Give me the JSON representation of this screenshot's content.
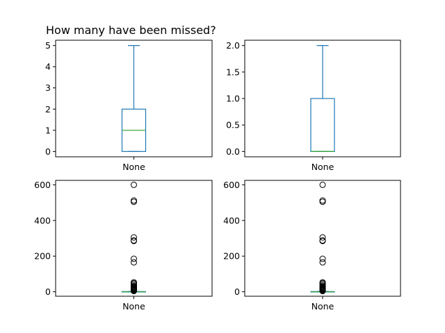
{
  "title": "How many have been missed?",
  "colors": {
    "box": "#1f77b4",
    "median": "#2ca02c",
    "flier": "#000000",
    "axes": "#000000"
  },
  "chart_data": [
    {
      "type": "box",
      "category": "None",
      "ylim": [
        -0.25,
        5.25
      ],
      "yticks": [
        0,
        1,
        2,
        3,
        4,
        5
      ],
      "yticklabels": [
        "0",
        "1",
        "2",
        "3",
        "4",
        "5"
      ],
      "stats": {
        "whislo": 0,
        "q1": 0,
        "med": 1,
        "q3": 2,
        "whishi": 5
      },
      "fliers": []
    },
    {
      "type": "box",
      "category": "None",
      "ylim": [
        -0.1,
        2.1
      ],
      "yticks": [
        0,
        0.5,
        1,
        1.5,
        2
      ],
      "yticklabels": [
        "0.0",
        "0.5",
        "1.0",
        "1.5",
        "2.0"
      ],
      "stats": {
        "whislo": 0,
        "q1": 0,
        "med": 0,
        "q3": 1,
        "whishi": 2
      },
      "fliers": []
    },
    {
      "type": "box",
      "category": "None",
      "ylim": [
        -25,
        625
      ],
      "yticks": [
        0,
        200,
        400,
        600
      ],
      "yticklabels": [
        "0",
        "200",
        "400",
        "600"
      ],
      "stats": {
        "whislo": 0,
        "q1": 0,
        "med": 0,
        "q3": 1,
        "whishi": 2
      },
      "fliers": [
        4,
        7,
        9,
        12,
        14,
        17,
        20,
        23,
        27,
        30,
        35,
        42,
        48,
        53,
        165,
        185,
        285,
        288,
        305,
        505,
        512,
        600
      ]
    },
    {
      "type": "box",
      "category": "None",
      "ylim": [
        -25,
        625
      ],
      "yticks": [
        0,
        200,
        400,
        600
      ],
      "yticklabels": [
        "0",
        "200",
        "400",
        "600"
      ],
      "stats": {
        "whislo": 0,
        "q1": 0,
        "med": 0,
        "q3": 1,
        "whishi": 2
      },
      "fliers": [
        4,
        7,
        9,
        12,
        14,
        17,
        20,
        23,
        27,
        30,
        35,
        42,
        48,
        53,
        165,
        185,
        285,
        288,
        305,
        505,
        512,
        600
      ]
    }
  ]
}
